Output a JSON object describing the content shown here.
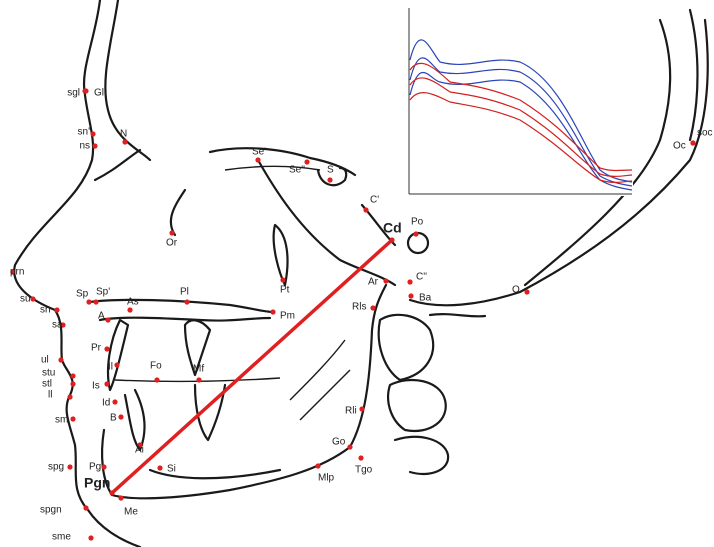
{
  "landmarks": [
    "sgl",
    "Gl",
    "sn'",
    "ns",
    "N",
    "Se'",
    "Se''",
    "S",
    "C'",
    "Po",
    "Cd",
    "Or",
    "prn",
    "Pt",
    "C''",
    "Ar",
    "Ba",
    "O",
    "Oc",
    "soc",
    "su",
    "Sp",
    "Sp'",
    "Pl",
    "sn",
    "A",
    "As",
    "Pm",
    "Rls",
    "sa",
    "Pr",
    "Il",
    "Fo",
    "Mf",
    "ul",
    "stu",
    "stl",
    "ll",
    "Is",
    "Id",
    "B",
    "sm",
    "Rli",
    "Go",
    "Ai",
    "spg",
    "Pg",
    "Si",
    "Tgo",
    "Mlp",
    "Pgn",
    "Me",
    "spgn",
    "sme"
  ]
}
